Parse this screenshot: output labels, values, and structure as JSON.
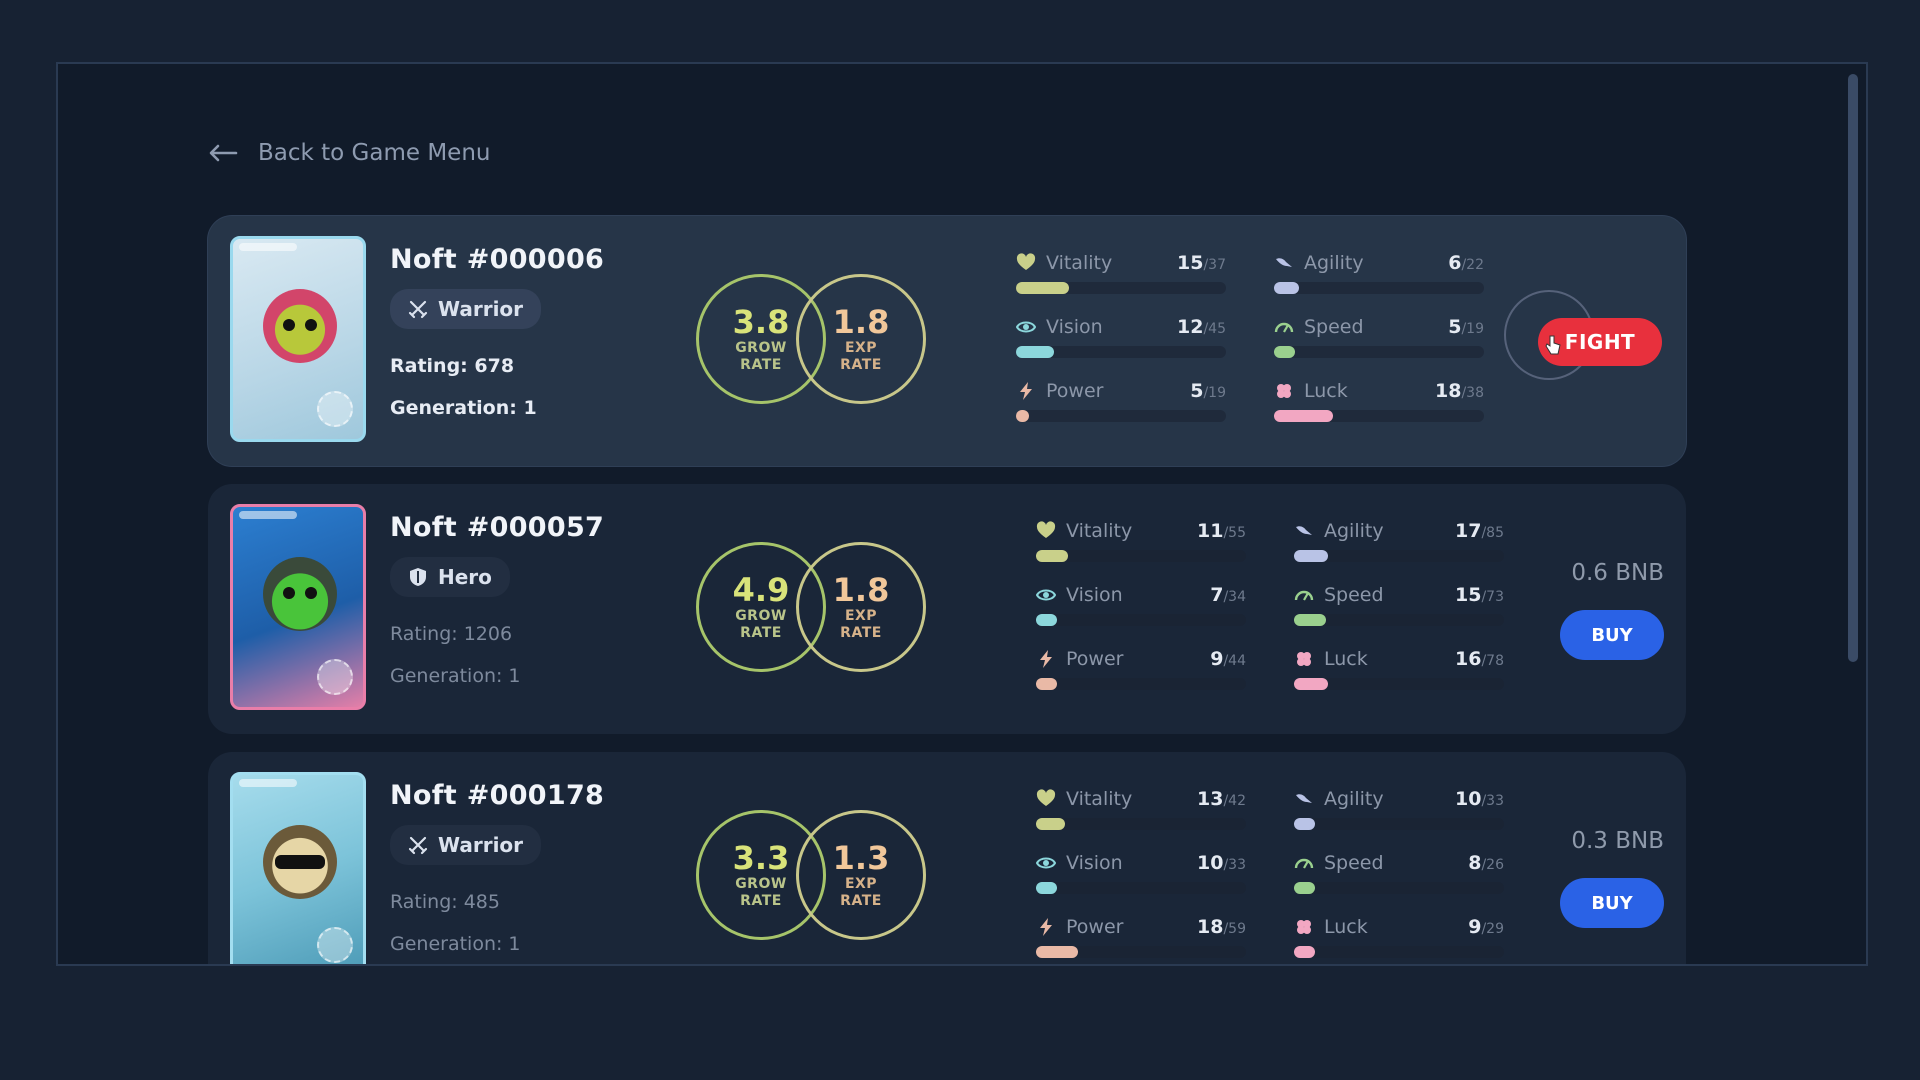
{
  "nav": {
    "back_label": "Back to Game Menu"
  },
  "colors": {
    "background": "#172233",
    "panel": "#111b2a",
    "card": "#1a2638",
    "card_highlight": "#263548",
    "fight": "#e8303d",
    "buy": "#2a62e6",
    "grow_ring": "#a6c46a",
    "exp_ring": "#c8c78a"
  },
  "nfts": [
    {
      "name": "Noft #000006",
      "class": {
        "label": "Warrior",
        "icon": "crossed-swords-icon"
      },
      "rating": "Rating: 678",
      "generation": "Generation: 1",
      "grow_rate": {
        "value": "3.8",
        "label_line1": "GROW",
        "label_line2": "RATE"
      },
      "exp_rate": {
        "value": "1.8",
        "label_line1": "EXP",
        "label_line2": "RATE"
      },
      "stats": [
        {
          "name": "Vitality",
          "icon": "heart-icon",
          "value": "15",
          "max": "/37",
          "fill": 0.25,
          "color": "#c9d08a"
        },
        {
          "name": "Agility",
          "icon": "wing-icon",
          "value": "6",
          "max": "/22",
          "fill": 0.12,
          "color": "#b9c3e6"
        },
        {
          "name": "Vision",
          "icon": "eye-icon",
          "value": "12",
          "max": "/45",
          "fill": 0.18,
          "color": "#8cd7dc"
        },
        {
          "name": "Speed",
          "icon": "speedometer-icon",
          "value": "5",
          "max": "/19",
          "fill": 0.1,
          "color": "#9ad08e"
        },
        {
          "name": "Power",
          "icon": "lightning-icon",
          "value": "5",
          "max": "/19",
          "fill": 0.06,
          "color": "#e9b9a6"
        },
        {
          "name": "Luck",
          "icon": "clover-icon",
          "value": "18",
          "max": "/38",
          "fill": 0.28,
          "color": "#f2a7c2"
        }
      ],
      "action": {
        "type": "fight",
        "label": "FIGHT"
      }
    },
    {
      "name": "Noft #000057",
      "class": {
        "label": "Hero",
        "icon": "shield-icon"
      },
      "rating": "Rating: 1206",
      "generation": "Generation: 1",
      "grow_rate": {
        "value": "4.9",
        "label_line1": "GROW",
        "label_line2": "RATE"
      },
      "exp_rate": {
        "value": "1.8",
        "label_line1": "EXP",
        "label_line2": "RATE"
      },
      "stats": [
        {
          "name": "Vitality",
          "icon": "heart-icon",
          "value": "11",
          "max": "/55",
          "fill": 0.15,
          "color": "#c9d08a"
        },
        {
          "name": "Agility",
          "icon": "wing-icon",
          "value": "17",
          "max": "/85",
          "fill": 0.16,
          "color": "#b9c3e6"
        },
        {
          "name": "Vision",
          "icon": "eye-icon",
          "value": "7",
          "max": "/34",
          "fill": 0.1,
          "color": "#8cd7dc"
        },
        {
          "name": "Speed",
          "icon": "speedometer-icon",
          "value": "15",
          "max": "/73",
          "fill": 0.15,
          "color": "#9ad08e"
        },
        {
          "name": "Power",
          "icon": "lightning-icon",
          "value": "9",
          "max": "/44",
          "fill": 0.1,
          "color": "#e9b9a6"
        },
        {
          "name": "Luck",
          "icon": "clover-icon",
          "value": "16",
          "max": "/78",
          "fill": 0.16,
          "color": "#f2a7c2"
        }
      ],
      "action": {
        "type": "buy",
        "price": "0.6 BNB",
        "label": "BUY"
      }
    },
    {
      "name": "Noft #000178",
      "class": {
        "label": "Warrior",
        "icon": "crossed-swords-icon"
      },
      "rating": "Rating: 485",
      "generation": "Generation: 1",
      "grow_rate": {
        "value": "3.3",
        "label_line1": "GROW",
        "label_line2": "RATE"
      },
      "exp_rate": {
        "value": "1.3",
        "label_line1": "EXP",
        "label_line2": "RATE"
      },
      "stats": [
        {
          "name": "Vitality",
          "icon": "heart-icon",
          "value": "13",
          "max": "/42",
          "fill": 0.14,
          "color": "#c9d08a"
        },
        {
          "name": "Agility",
          "icon": "wing-icon",
          "value": "10",
          "max": "/33",
          "fill": 0.1,
          "color": "#b9c3e6"
        },
        {
          "name": "Vision",
          "icon": "eye-icon",
          "value": "10",
          "max": "/33",
          "fill": 0.1,
          "color": "#8cd7dc"
        },
        {
          "name": "Speed",
          "icon": "speedometer-icon",
          "value": "8",
          "max": "/26",
          "fill": 0.1,
          "color": "#9ad08e"
        },
        {
          "name": "Power",
          "icon": "lightning-icon",
          "value": "18",
          "max": "/59",
          "fill": 0.2,
          "color": "#e9b9a6"
        },
        {
          "name": "Luck",
          "icon": "clover-icon",
          "value": "9",
          "max": "/29",
          "fill": 0.1,
          "color": "#f2a7c2"
        }
      ],
      "action": {
        "type": "buy",
        "price": "0.3 BNB",
        "label": "BUY"
      }
    }
  ]
}
